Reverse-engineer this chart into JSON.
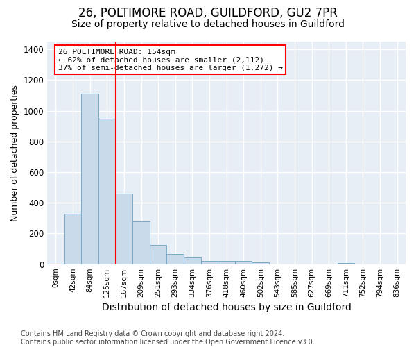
{
  "title": "26, POLTIMORE ROAD, GUILDFORD, GU2 7PR",
  "subtitle": "Size of property relative to detached houses in Guildford",
  "xlabel": "Distribution of detached houses by size in Guildford",
  "ylabel": "Number of detached properties",
  "bar_labels": [
    "0sqm",
    "42sqm",
    "84sqm",
    "125sqm",
    "167sqm",
    "209sqm",
    "251sqm",
    "293sqm",
    "334sqm",
    "376sqm",
    "418sqm",
    "460sqm",
    "502sqm",
    "543sqm",
    "585sqm",
    "627sqm",
    "669sqm",
    "711sqm",
    "752sqm",
    "794sqm",
    "836sqm"
  ],
  "bar_values": [
    5,
    330,
    1110,
    950,
    460,
    280,
    125,
    68,
    42,
    20,
    22,
    22,
    12,
    0,
    0,
    0,
    0,
    7,
    0,
    0,
    0
  ],
  "bar_color": "#c9daea",
  "bar_edge_color": "#7aaac8",
  "vline_x": 3.5,
  "vline_color": "red",
  "annotation_text": "26 POLTIMORE ROAD: 154sqm\n← 62% of detached houses are smaller (2,112)\n37% of semi-detached houses are larger (1,272) →",
  "annotation_box_color": "white",
  "annotation_box_edge_color": "red",
  "ylim": [
    0,
    1450
  ],
  "yticks": [
    0,
    200,
    400,
    600,
    800,
    1000,
    1200,
    1400
  ],
  "footer": "Contains HM Land Registry data © Crown copyright and database right 2024.\nContains public sector information licensed under the Open Government Licence v3.0.",
  "title_fontsize": 12,
  "subtitle_fontsize": 10,
  "xlabel_fontsize": 10,
  "ylabel_fontsize": 9,
  "footer_fontsize": 7,
  "bg_color": "#ffffff",
  "plot_bg_color": "#e8eef5"
}
